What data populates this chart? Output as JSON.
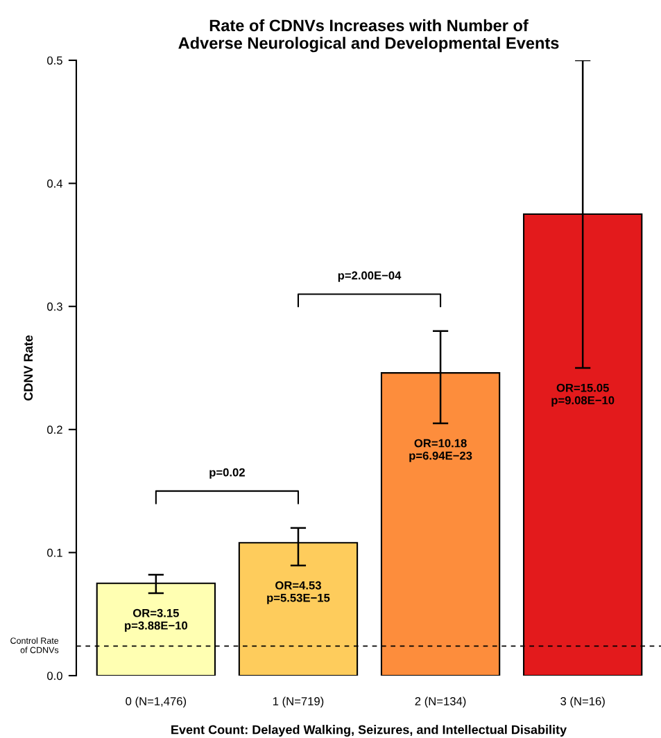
{
  "chart_data": {
    "type": "bar",
    "title": "Rate of CDNVs Increases with Number of\nAdverse Neurological and Developmental Events",
    "xlabel": "Event Count: Delayed Walking, Seizures, and Intellectual Disability",
    "ylabel": "CDNV Rate",
    "categories": [
      "0 (N=1,476)",
      "1 (N=719)",
      "2 (N=134)",
      "3 (N=16)"
    ],
    "values": [
      0.075,
      0.108,
      0.246,
      0.375
    ],
    "colors": [
      "#ffffb2",
      "#fecc5c",
      "#fd8d3c",
      "#e31a1c"
    ],
    "errors": [
      [
        0.067,
        0.082
      ],
      [
        0.0895,
        0.12
      ],
      [
        0.205,
        0.28
      ],
      [
        0.25,
        0.5
      ]
    ],
    "ylim": [
      0,
      0.5
    ],
    "yticks": [
      {
        "value": 0,
        "label": "0.0"
      },
      0.1,
      0.2,
      0.3,
      0.4,
      0.5
    ],
    "ref_lines": [
      {
        "axis": "y",
        "value": 0.024,
        "label": "Control Rate\nof CDNVs",
        "color": "#000000",
        "line_style": "dashed"
      }
    ],
    "annotations": [
      "OR=3.15\np=3.88E−10",
      "OR=4.53\np=5.53E−15",
      "OR=10.18\np=6.94E−23",
      "OR=15.05\np=9.08E−10",
      "p=0.02",
      "p=2.00E−04"
    ],
    "grid": false,
    "legend": false
  }
}
